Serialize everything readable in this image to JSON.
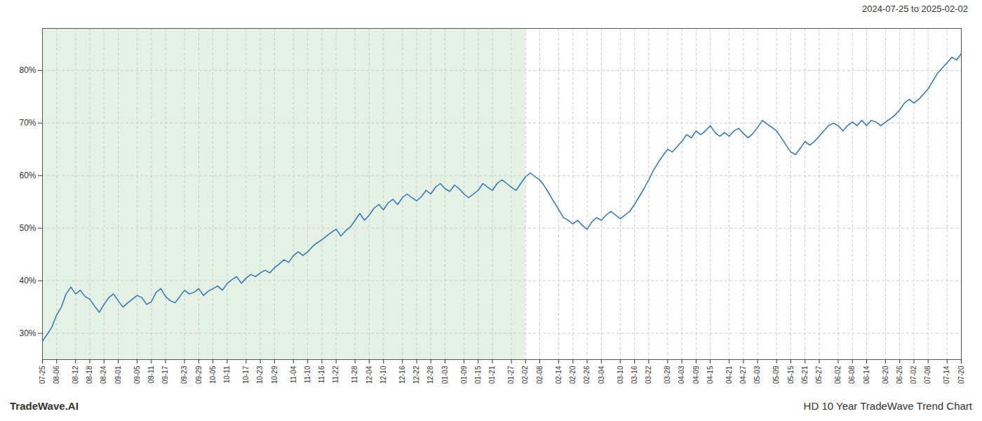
{
  "chart_data": {
    "type": "line",
    "title": "HD 10 Year TradeWave Trend Chart",
    "subtitle": "2024-07-25 to 2025-02-02",
    "annotations": [
      "TradeWave.AI"
    ],
    "color": "#2E75B6",
    "categories": [
      "07-25",
      null,
      null,
      "08-06",
      null,
      null,
      null,
      "08-12",
      null,
      null,
      "08-18",
      null,
      null,
      "08-24",
      null,
      null,
      "09-01",
      null,
      null,
      null,
      "09-05",
      null,
      null,
      "09-11",
      null,
      null,
      "09-17",
      null,
      null,
      null,
      "09-23",
      null,
      null,
      "09-29",
      null,
      null,
      "10-05",
      null,
      null,
      "10-11",
      null,
      null,
      null,
      "10-17",
      null,
      null,
      "10-23",
      null,
      null,
      "10-29",
      null,
      null,
      null,
      "11-04",
      null,
      null,
      "11-10",
      null,
      null,
      "11-16",
      null,
      null,
      "11-22",
      null,
      null,
      null,
      "11-28",
      null,
      null,
      "12-04",
      null,
      null,
      "12-10",
      null,
      null,
      null,
      "12-16",
      null,
      null,
      "12-22",
      null,
      null,
      "12-28",
      null,
      null,
      "01-03",
      null,
      null,
      null,
      "01-09",
      null,
      null,
      "01-15",
      null,
      null,
      "01-21",
      null,
      null,
      null,
      "01-27",
      null,
      null,
      "02-02",
      null,
      null,
      "02-08",
      null,
      null,
      null,
      "02-14",
      null,
      null,
      "02-20",
      null,
      null,
      "02-26",
      null,
      null,
      "03-04",
      null,
      null,
      null,
      "03-10",
      null,
      null,
      "03-16",
      null,
      null,
      "03-22",
      null,
      null,
      null,
      "03-28",
      null,
      null,
      "04-03",
      null,
      null,
      "04-09",
      null,
      null,
      "04-15",
      null,
      null,
      null,
      "04-21",
      null,
      null,
      "04-27",
      null,
      null,
      "05-03",
      null,
      null,
      null,
      "05-09",
      null,
      null,
      "05-15",
      null,
      null,
      "05-21",
      null,
      null,
      "05-27",
      null,
      null,
      null,
      "06-02",
      null,
      null,
      "06-08",
      null,
      null,
      "06-14",
      null,
      null,
      null,
      "06-20",
      null,
      null,
      "06-26",
      null,
      null,
      "07-02",
      null,
      null,
      "07-08",
      null,
      null,
      null,
      "07-14",
      null,
      null,
      "07-20"
    ],
    "values": [
      28.5,
      29.8,
      31.2,
      33.5,
      35.0,
      37.5,
      38.8,
      37.5,
      38.2,
      37.0,
      36.5,
      35.2,
      34.0,
      35.5,
      36.8,
      37.5,
      36.2,
      35.0,
      35.8,
      36.5,
      37.2,
      36.8,
      35.5,
      36.0,
      37.8,
      38.5,
      37.0,
      36.2,
      35.8,
      37.0,
      38.2,
      37.5,
      37.8,
      38.5,
      37.2,
      38.0,
      38.5,
      39.0,
      38.2,
      39.5,
      40.2,
      40.8,
      39.5,
      40.5,
      41.2,
      40.8,
      41.5,
      42.0,
      41.5,
      42.5,
      43.2,
      44.0,
      43.5,
      44.8,
      45.5,
      44.8,
      45.5,
      46.5,
      47.2,
      47.8,
      48.5,
      49.2,
      49.8,
      48.5,
      49.5,
      50.2,
      51.5,
      52.8,
      51.5,
      52.5,
      53.8,
      54.5,
      53.5,
      54.8,
      55.5,
      54.5,
      55.8,
      56.5,
      55.8,
      55.2,
      56.0,
      57.2,
      56.5,
      57.8,
      58.5,
      57.5,
      57.0,
      58.2,
      57.5,
      56.5,
      55.8,
      56.5,
      57.2,
      58.5,
      57.8,
      57.2,
      58.5,
      59.2,
      58.5,
      57.8,
      57.2,
      58.5,
      59.8,
      60.5,
      59.8,
      59.2,
      58.0,
      56.5,
      55.0,
      53.5,
      52.0,
      51.5,
      50.8,
      51.5,
      50.5,
      49.8,
      51.2,
      52.0,
      51.5,
      52.5,
      53.2,
      52.5,
      51.8,
      52.5,
      53.2,
      54.5,
      56.0,
      57.5,
      59.2,
      61.0,
      62.5,
      63.8,
      65.0,
      64.5,
      65.5,
      66.5,
      67.8,
      67.2,
      68.5,
      67.8,
      68.5,
      69.5,
      68.2,
      67.5,
      68.2,
      67.5,
      68.5,
      69.0,
      68.0,
      67.2,
      68.0,
      69.2,
      70.5,
      69.8,
      69.2,
      68.5,
      67.2,
      65.8,
      64.5,
      64.0,
      65.2,
      66.5,
      65.8,
      66.5,
      67.5,
      68.5,
      69.5,
      70.0,
      69.5,
      68.5,
      69.5,
      70.2,
      69.5,
      70.5,
      69.5,
      70.5,
      70.2,
      69.5,
      70.2,
      70.8,
      71.5,
      72.5,
      73.8,
      74.5,
      73.8,
      74.5,
      75.5,
      76.5,
      78.0,
      79.5,
      80.5,
      81.5,
      82.5,
      82.0,
      83.2
    ],
    "ylim": [
      25,
      88
    ],
    "yticks": [
      {
        "value": 30,
        "label": "30%"
      },
      {
        "value": 40,
        "label": "40%"
      },
      {
        "value": 50,
        "label": "50%"
      },
      {
        "value": 60,
        "label": "60%"
      },
      {
        "value": 70,
        "label": "70%"
      },
      {
        "value": 80,
        "label": "80%"
      }
    ],
    "grid": true,
    "shaded_region": {
      "from": "07-25",
      "to": "02-02",
      "color": "#d4e8d4"
    }
  }
}
